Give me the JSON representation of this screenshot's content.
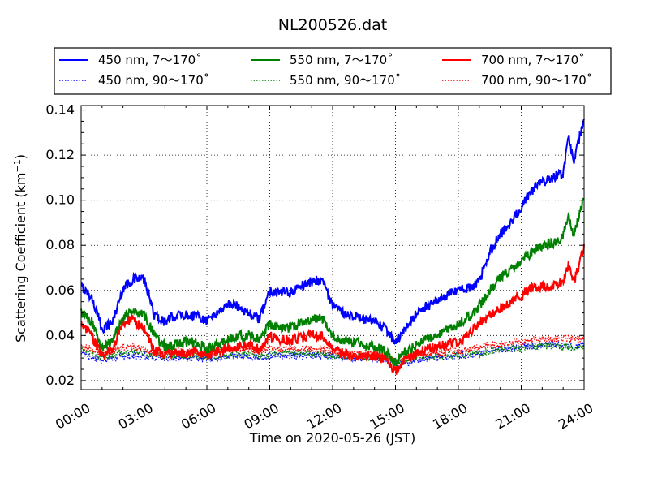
{
  "chart_data": {
    "type": "line",
    "title": "NL200526.dat",
    "xlabel": "Time on 2020-05-26 (JST)",
    "ylabel_main": "Scattering Coefficient (km",
    "ylabel_sup": "−1",
    "ylabel_close": ")",
    "x_unit": "hours",
    "xlim": [
      0,
      24
    ],
    "ylim": [
      0.016,
      0.142
    ],
    "grid": true,
    "legend_position": "top, above plot, 3 columns",
    "x_ticks": [
      {
        "value": 0,
        "label": "00:00"
      },
      {
        "value": 3,
        "label": "03:00"
      },
      {
        "value": 6,
        "label": "06:00"
      },
      {
        "value": 9,
        "label": "09:00"
      },
      {
        "value": 12,
        "label": "12:00"
      },
      {
        "value": 15,
        "label": "15:00"
      },
      {
        "value": 18,
        "label": "18:00"
      },
      {
        "value": 21,
        "label": "21:00"
      },
      {
        "value": 24,
        "label": "24:00"
      }
    ],
    "y_ticks": [
      {
        "value": 0.02,
        "label": "0.02"
      },
      {
        "value": 0.04,
        "label": "0.04"
      },
      {
        "value": 0.06,
        "label": "0.06"
      },
      {
        "value": 0.08,
        "label": "0.08"
      },
      {
        "value": 0.1,
        "label": "0.10"
      },
      {
        "value": 0.12,
        "label": "0.12"
      },
      {
        "value": 0.14,
        "label": "0.14"
      }
    ],
    "x": [
      0,
      0.5,
      1,
      1.5,
      2,
      2.5,
      3,
      3.5,
      4,
      4.5,
      5,
      5.5,
      6,
      6.5,
      7,
      7.5,
      8,
      8.5,
      9,
      9.5,
      10,
      10.5,
      11,
      11.5,
      12,
      12.5,
      13,
      13.5,
      14,
      14.5,
      15,
      15.5,
      16,
      16.5,
      17,
      17.5,
      18,
      18.5,
      19,
      19.5,
      20,
      20.5,
      21,
      21.5,
      22,
      22.5,
      23,
      23.25,
      23.5,
      24
    ],
    "series": [
      {
        "name": "450 nm, 7～170˚",
        "color": "#0000ff",
        "style": "solid",
        "values": [
          0.062,
          0.057,
          0.043,
          0.046,
          0.061,
          0.065,
          0.065,
          0.049,
          0.046,
          0.049,
          0.049,
          0.049,
          0.047,
          0.05,
          0.054,
          0.053,
          0.05,
          0.047,
          0.06,
          0.059,
          0.059,
          0.062,
          0.064,
          0.065,
          0.053,
          0.05,
          0.049,
          0.047,
          0.046,
          0.043,
          0.037,
          0.043,
          0.05,
          0.053,
          0.055,
          0.058,
          0.06,
          0.061,
          0.064,
          0.077,
          0.085,
          0.09,
          0.097,
          0.104,
          0.108,
          0.11,
          0.112,
          0.129,
          0.116,
          0.137
        ]
      },
      {
        "name": "550 nm, 7～170˚",
        "color": "#008000",
        "style": "solid",
        "values": [
          0.05,
          0.046,
          0.035,
          0.038,
          0.048,
          0.052,
          0.049,
          0.04,
          0.035,
          0.036,
          0.037,
          0.037,
          0.034,
          0.036,
          0.038,
          0.04,
          0.04,
          0.038,
          0.045,
          0.043,
          0.043,
          0.046,
          0.047,
          0.048,
          0.04,
          0.038,
          0.037,
          0.036,
          0.035,
          0.033,
          0.028,
          0.033,
          0.036,
          0.039,
          0.04,
          0.043,
          0.045,
          0.048,
          0.053,
          0.06,
          0.066,
          0.069,
          0.073,
          0.077,
          0.08,
          0.081,
          0.084,
          0.093,
          0.084,
          0.101
        ]
      },
      {
        "name": "700 nm, 7～170˚",
        "color": "#ff0000",
        "style": "solid",
        "values": [
          0.045,
          0.04,
          0.031,
          0.034,
          0.046,
          0.047,
          0.043,
          0.033,
          0.032,
          0.032,
          0.032,
          0.033,
          0.031,
          0.033,
          0.035,
          0.035,
          0.036,
          0.034,
          0.04,
          0.038,
          0.038,
          0.039,
          0.04,
          0.04,
          0.034,
          0.032,
          0.031,
          0.031,
          0.031,
          0.03,
          0.024,
          0.03,
          0.032,
          0.034,
          0.035,
          0.036,
          0.037,
          0.041,
          0.045,
          0.049,
          0.052,
          0.055,
          0.058,
          0.061,
          0.062,
          0.062,
          0.064,
          0.072,
          0.063,
          0.079
        ]
      },
      {
        "name": "450 nm, 90～170˚",
        "color": "#0000ff",
        "style": "dotted",
        "values": [
          0.032,
          0.03,
          0.029,
          0.03,
          0.031,
          0.031,
          0.031,
          0.03,
          0.03,
          0.03,
          0.03,
          0.03,
          0.03,
          0.03,
          0.031,
          0.031,
          0.031,
          0.03,
          0.031,
          0.031,
          0.031,
          0.031,
          0.031,
          0.031,
          0.031,
          0.03,
          0.03,
          0.03,
          0.03,
          0.029,
          0.027,
          0.028,
          0.029,
          0.03,
          0.03,
          0.031,
          0.031,
          0.031,
          0.032,
          0.033,
          0.034,
          0.034,
          0.035,
          0.035,
          0.036,
          0.036,
          0.036,
          0.036,
          0.035,
          0.036
        ]
      },
      {
        "name": "550 nm, 90～170˚",
        "color": "#008000",
        "style": "dotted",
        "values": [
          0.033,
          0.032,
          0.03,
          0.031,
          0.032,
          0.033,
          0.032,
          0.031,
          0.031,
          0.031,
          0.031,
          0.031,
          0.03,
          0.031,
          0.031,
          0.032,
          0.032,
          0.031,
          0.032,
          0.032,
          0.032,
          0.032,
          0.032,
          0.032,
          0.031,
          0.031,
          0.031,
          0.03,
          0.03,
          0.03,
          0.028,
          0.029,
          0.03,
          0.03,
          0.031,
          0.031,
          0.031,
          0.032,
          0.032,
          0.033,
          0.034,
          0.034,
          0.034,
          0.035,
          0.035,
          0.035,
          0.035,
          0.035,
          0.034,
          0.035
        ]
      },
      {
        "name": "700 nm, 90～170˚",
        "color": "#ff0000",
        "style": "dotted",
        "values": [
          0.035,
          0.034,
          0.032,
          0.033,
          0.035,
          0.035,
          0.034,
          0.032,
          0.033,
          0.033,
          0.033,
          0.033,
          0.032,
          0.033,
          0.033,
          0.034,
          0.034,
          0.033,
          0.034,
          0.034,
          0.034,
          0.034,
          0.034,
          0.034,
          0.033,
          0.032,
          0.032,
          0.032,
          0.032,
          0.031,
          0.029,
          0.03,
          0.031,
          0.032,
          0.032,
          0.033,
          0.033,
          0.034,
          0.035,
          0.036,
          0.036,
          0.037,
          0.037,
          0.038,
          0.038,
          0.038,
          0.039,
          0.039,
          0.038,
          0.039
        ]
      }
    ],
    "legend": [
      {
        "label": "450 nm, 7～170˚",
        "color": "#0000ff",
        "style": "solid"
      },
      {
        "label": "550 nm, 7～170˚",
        "color": "#008000",
        "style": "solid"
      },
      {
        "label": "700 nm, 7～170˚",
        "color": "#ff0000",
        "style": "solid"
      },
      {
        "label": "450 nm, 90～170˚",
        "color": "#0000ff",
        "style": "dotted"
      },
      {
        "label": "550 nm, 90～170˚",
        "color": "#008000",
        "style": "dotted"
      },
      {
        "label": "700 nm, 90～170˚",
        "color": "#ff0000",
        "style": "dotted"
      }
    ]
  }
}
